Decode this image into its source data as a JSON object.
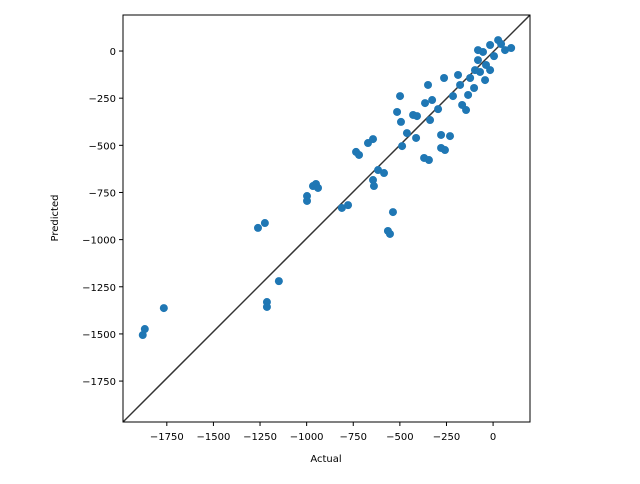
{
  "chart_data": {
    "type": "scatter",
    "x_label": "Actual",
    "y_label": "Predicted",
    "color": "#1f77b4",
    "xlim": [
      -1985,
      198
    ],
    "ylim": [
      -1967,
      191
    ],
    "xticks": [
      {
        "value": -1750,
        "label": "−1750"
      },
      {
        "value": -1500,
        "label": "−1500"
      },
      {
        "value": -1250,
        "label": "−1250"
      },
      {
        "value": -1000,
        "label": "−1000"
      },
      {
        "value": -750,
        "label": "−750"
      },
      {
        "value": -500,
        "label": "−500"
      },
      {
        "value": -250,
        "label": "−250"
      },
      0
    ],
    "yticks": [
      {
        "value": -1750,
        "label": "−1750"
      },
      {
        "value": -1500,
        "label": "−1500"
      },
      {
        "value": -1250,
        "label": "−1250"
      },
      {
        "value": -1000,
        "label": "−1000"
      },
      {
        "value": -750,
        "label": "−750"
      },
      {
        "value": -500,
        "label": "−500"
      },
      {
        "value": -250,
        "label": "−250"
      },
      0
    ],
    "x": [
      -1879,
      -1868,
      -1766,
      -1261,
      -1224,
      -1213,
      -1213,
      -1149,
      -998,
      -998,
      -966,
      -950,
      -939,
      -811,
      -778,
      -735,
      -719,
      -671,
      -644,
      -644,
      -639,
      -617,
      -585,
      -564,
      -553,
      -537,
      -515,
      -499,
      -494,
      -488,
      -462,
      -429,
      -413,
      -408,
      -370,
      -344,
      -349,
      -338,
      -295,
      -279,
      -279,
      -258,
      -263,
      -231,
      -215,
      -188,
      -166,
      -145,
      -123,
      -102,
      -81,
      -70,
      -54,
      -38,
      -16,
      5,
      27,
      43,
      64,
      97,
      -177,
      -97,
      -134,
      -16,
      -81,
      -43,
      -327,
      -365
    ],
    "y": [
      -1506,
      -1474,
      -1363,
      -938,
      -912,
      -1331,
      -1357,
      -1220,
      -769,
      -795,
      -716,
      -705,
      -726,
      -832,
      -817,
      -535,
      -551,
      -488,
      -467,
      -684,
      -716,
      -631,
      -647,
      -954,
      -970,
      -854,
      -323,
      -239,
      -376,
      -504,
      -435,
      -339,
      -461,
      -345,
      -567,
      -578,
      -180,
      -366,
      -308,
      -445,
      -514,
      -525,
      -143,
      -451,
      -239,
      -127,
      -286,
      -313,
      -143,
      -196,
      -48,
      -111,
      -5,
      -74,
      32,
      -27,
      58,
      37,
      5,
      16,
      -180,
      -101,
      -233,
      -101,
      5,
      -154,
      -260,
      -276
    ]
  }
}
